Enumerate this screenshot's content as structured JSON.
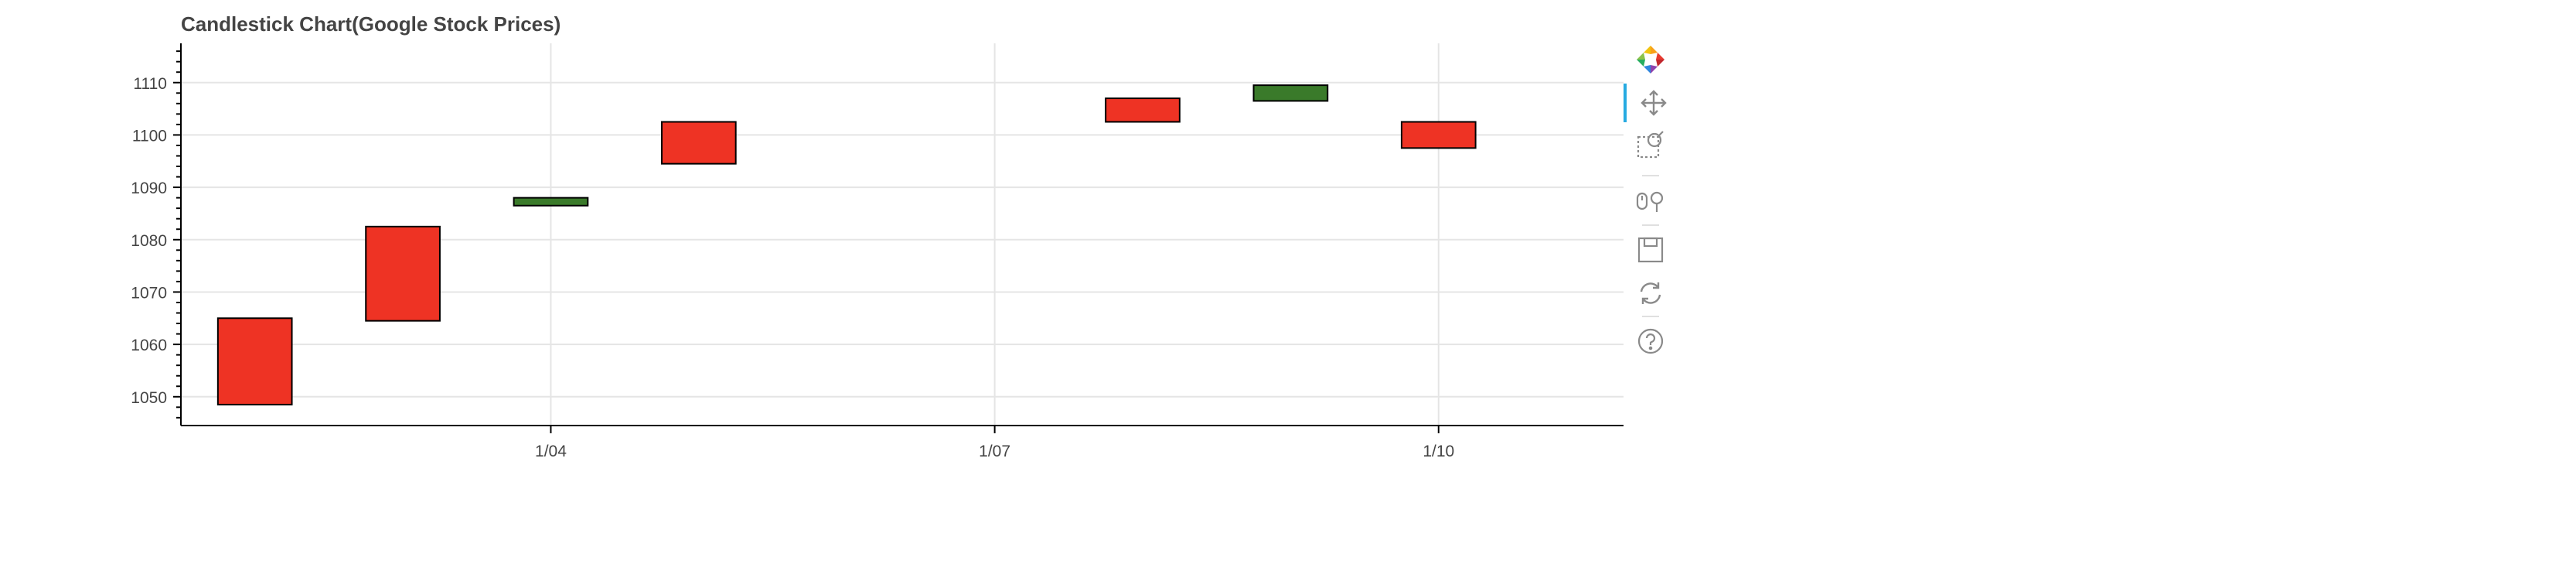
{
  "chart_data": {
    "type": "candlestick",
    "title": "Candlestick Chart(Google Stock Prices)",
    "xlabel": "",
    "ylabel": "",
    "x_range": [
      "2019-01-01 12:00",
      "2019-01-11 06:00"
    ],
    "ylim": [
      1044.5,
      1117.5
    ],
    "y_ticks": [
      1050,
      1060,
      1070,
      1080,
      1090,
      1100,
      1110
    ],
    "x_ticks": [
      {
        "date": "2019-01-04",
        "label": "1/04"
      },
      {
        "date": "2019-01-07",
        "label": "1/07"
      },
      {
        "date": "2019-01-10",
        "label": "1/10"
      }
    ],
    "grid": true,
    "colors": {
      "increase": "#3a7a2a",
      "decrease": "#ee3324",
      "outline": "#000000",
      "grid": "#e5e5e5",
      "axis": "#000000"
    },
    "candles": [
      {
        "date": "2019-01-02",
        "open": 1065,
        "close": 1048.5,
        "direction": "down"
      },
      {
        "date": "2019-01-03",
        "open": 1082.5,
        "close": 1064.5,
        "direction": "down"
      },
      {
        "date": "2019-01-04",
        "open": 1086.5,
        "close": 1088,
        "direction": "up"
      },
      {
        "date": "2019-01-05",
        "open": 1102.5,
        "close": 1094.5,
        "direction": "down"
      },
      {
        "date": "2019-01-08",
        "open": 1107,
        "close": 1102.5,
        "direction": "down"
      },
      {
        "date": "2019-01-09",
        "open": 1106.5,
        "close": 1109.5,
        "direction": "up"
      },
      {
        "date": "2019-01-10",
        "open": 1102.5,
        "close": 1097.5,
        "direction": "down"
      }
    ]
  },
  "toolbar": {
    "logo_icon": "bokeh-logo-icon",
    "tools": [
      {
        "name": "pan-icon",
        "active": true
      },
      {
        "name": "box-zoom-icon",
        "active": false
      },
      {
        "name": "wheel-zoom-icon",
        "active": false
      },
      {
        "name": "save-icon",
        "active": false
      },
      {
        "name": "reset-icon",
        "active": false
      },
      {
        "name": "help-icon",
        "active": false
      }
    ]
  }
}
